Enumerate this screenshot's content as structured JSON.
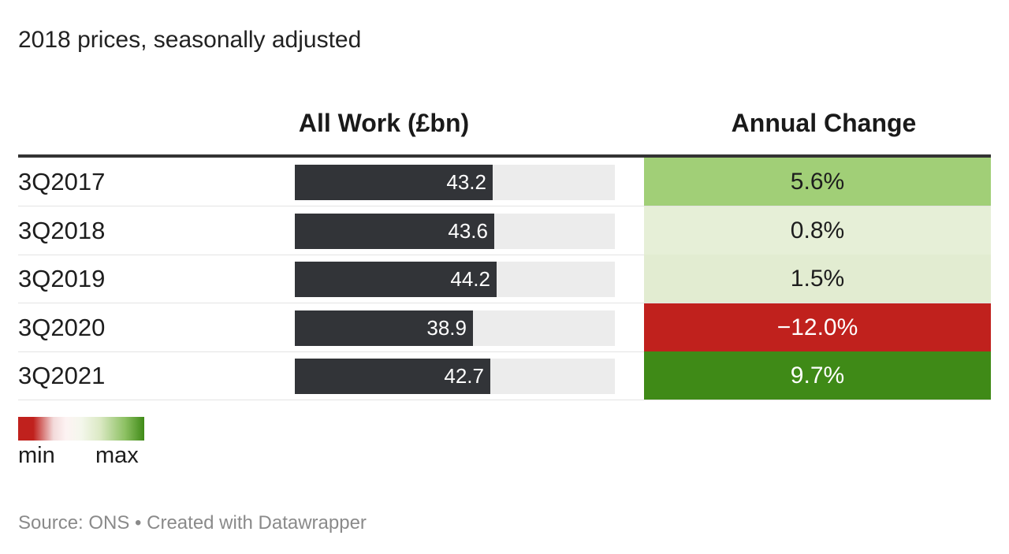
{
  "subtitle": "2018 prices, seasonally adjusted",
  "headers": {
    "work": "All Work (£bn)",
    "change": "Annual Change"
  },
  "chart_data": {
    "type": "table",
    "columns": [
      "",
      "All Work (£bn)",
      "Annual Change"
    ],
    "bar_max": 70,
    "rows": [
      {
        "label": "3Q2017",
        "value": 43.2,
        "value_label": "43.2",
        "change": 5.6,
        "change_label": "5.6%",
        "change_bg": "#a1cf77",
        "change_color": "#1d1d1d"
      },
      {
        "label": "3Q2018",
        "value": 43.6,
        "value_label": "43.6",
        "change": 0.8,
        "change_label": "0.8%",
        "change_bg": "#e6efd7",
        "change_color": "#1d1d1d"
      },
      {
        "label": "3Q2019",
        "value": 44.2,
        "value_label": "44.2",
        "change": 1.5,
        "change_label": "1.5%",
        "change_bg": "#e2ecd1",
        "change_color": "#1d1d1d"
      },
      {
        "label": "3Q2020",
        "value": 38.9,
        "value_label": "38.9",
        "change": -12.0,
        "change_label": "−12.0%",
        "change_bg": "#c0211d",
        "change_color": "#ffffff"
      },
      {
        "label": "3Q2021",
        "value": 42.7,
        "value_label": "42.7",
        "change": 9.7,
        "change_label": "9.7%",
        "change_bg": "#3f8a17",
        "change_color": "#ffffff"
      }
    ],
    "legend": {
      "min_label": "min",
      "max_label": "max",
      "min_color": "#c0211d",
      "max_color": "#3f8a17"
    }
  },
  "footer": "Source: ONS • Created with Datawrapper"
}
